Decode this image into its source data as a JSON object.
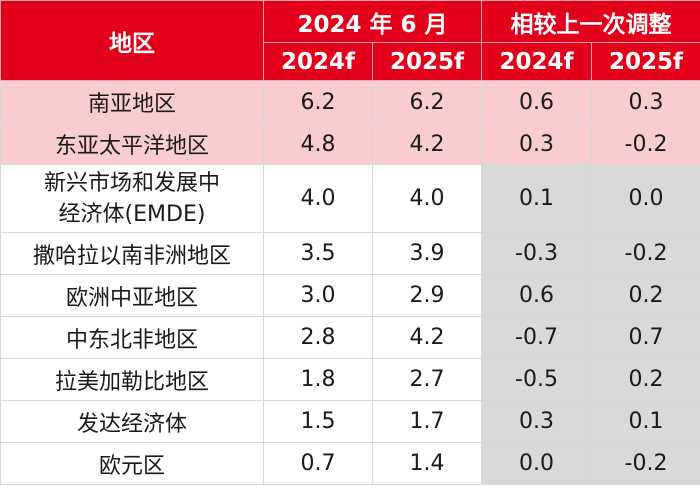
{
  "chart_data": {
    "type": "table",
    "header": {
      "region_label": "地区",
      "group1_label": "2024 年 6 月",
      "group2_label": "相较上一次调整",
      "sub_labels": [
        "2024f",
        "2025f",
        "2024f",
        "2025f"
      ]
    },
    "rows": [
      {
        "region": "南亚地区",
        "v2024": "6.2",
        "v2025": "6.2",
        "d2024": "0.6",
        "d2025": "0.3",
        "highlight": true
      },
      {
        "region": "东亚太平洋地区",
        "v2024": "4.8",
        "v2025": "4.2",
        "d2024": "0.3",
        "d2025": "-0.2",
        "highlight": true
      },
      {
        "region_line1": "新兴市场和发展中",
        "region_line2": "经济体(EMDE)",
        "v2024": "4.0",
        "v2025": "4.0",
        "d2024": "0.1",
        "d2025": "0.0",
        "highlight": false
      },
      {
        "region": "撒哈拉以南非洲地区",
        "v2024": "3.5",
        "v2025": "3.9",
        "d2024": "-0.3",
        "d2025": "-0.2",
        "highlight": false
      },
      {
        "region": "欧洲中亚地区",
        "v2024": "3.0",
        "v2025": "2.9",
        "d2024": "0.6",
        "d2025": "0.2",
        "highlight": false
      },
      {
        "region": "中东北非地区",
        "v2024": "2.8",
        "v2025": "4.2",
        "d2024": "-0.7",
        "d2025": "0.7",
        "highlight": false
      },
      {
        "region": "拉美加勒比地区",
        "v2024": "1.8",
        "v2025": "2.7",
        "d2024": "-0.5",
        "d2025": "0.2",
        "highlight": false
      },
      {
        "region": "发达经济体",
        "v2024": "1.5",
        "v2025": "1.7",
        "d2024": "0.3",
        "d2025": "0.1",
        "highlight": false
      },
      {
        "region": "欧元区",
        "v2024": "0.7",
        "v2025": "1.4",
        "d2024": "0.0",
        "d2025": "-0.2",
        "highlight": false
      }
    ],
    "colors": {
      "header_red": "#e2001a",
      "highlight_pink": "#f9cdd0",
      "grey_cell": "#d9d9d9"
    }
  }
}
